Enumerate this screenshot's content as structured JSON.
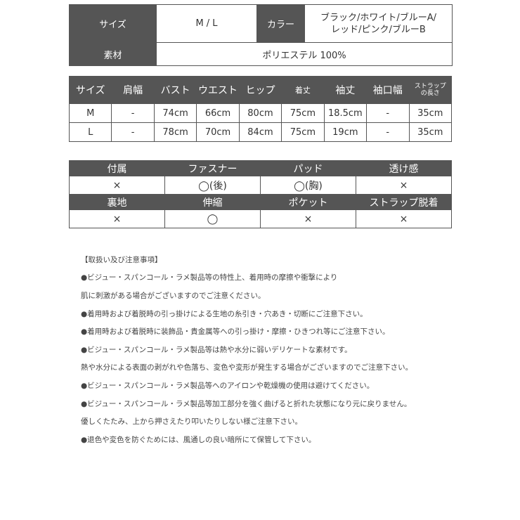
{
  "spec": {
    "size_label": "サイズ",
    "size_value": "M / L",
    "color_label": "カラー",
    "color_line1": "ブラック/ホワイト/ブルーA/",
    "color_line2": "レッド/ピンク/ブルーB",
    "material_label": "素材",
    "material_value": "ポリエステル 100%"
  },
  "measure": {
    "headers": [
      "サイズ",
      "肩幅",
      "バスト",
      "ウエスト",
      "ヒップ",
      "着丈",
      "袖丈",
      "袖口幅",
      "ストラップ",
      "の長さ"
    ],
    "rows": [
      [
        "M",
        "-",
        "74cm",
        "66cm",
        "80cm",
        "75cm",
        "18.5cm",
        "-",
        "35cm"
      ],
      [
        "L",
        "-",
        "78cm",
        "70cm",
        "84cm",
        "75cm",
        "19cm",
        "-",
        "35cm"
      ]
    ]
  },
  "features": {
    "headers1": [
      "付属",
      "ファスナー",
      "パッド",
      "透け感"
    ],
    "values1": [
      "×",
      "◯(後)",
      "◯(胸)",
      "×"
    ],
    "headers2": [
      "裏地",
      "伸縮",
      "ポケット",
      "ストラップ脱着"
    ],
    "values2": [
      "×",
      "◯",
      "×",
      "×"
    ]
  },
  "notes": [
    "【取扱い及び注意事項】",
    "●ビジュー・スパンコール・ラメ製品等の特性上、着用時の摩擦や衝撃により",
    "肌に刺激がある場合がございますのでご注意ください。",
    "●着用時および着脱時の引っ掛けによる生地の糸引き・穴あき・切断にご注意下さい。",
    "●着用時および着脱時に装飾品・貴金属等への引っ掛け・摩擦・ひきつれ等にご注意下さい。",
    "●ビジュー・スパンコール・ラメ製品等は熱や水分に弱いデリケートな素材です。",
    "熱や水分による表面の剥がれや色落ち、変色や変形が発生する場合がございますのでご注意下さい。",
    "●ビジュー・スパンコール・ラメ製品等へのアイロンや乾燥機の使用は避けてください。",
    "●ビジュー・スパンコール・ラメ製品等加工部分を強く曲げると折れた状態になり元に戻りません。",
    "優しくたたみ、上から押さえたり叩いたりしない様ご注意下さい。",
    "●退色や変色を防ぐためには、風通しの良い暗所にて保管して下さい。"
  ]
}
